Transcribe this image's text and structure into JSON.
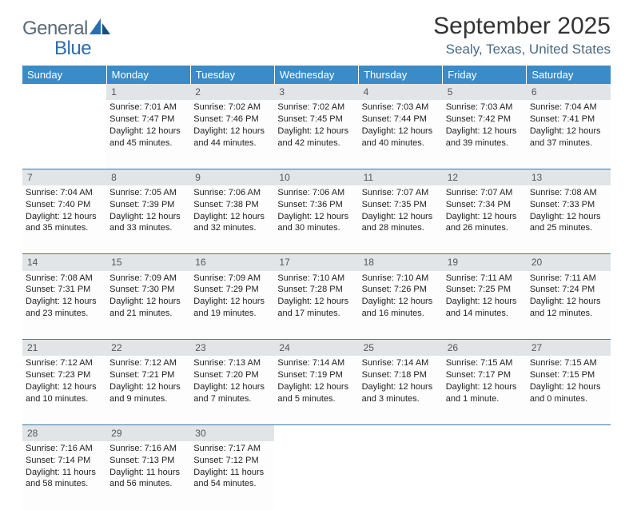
{
  "logo": {
    "word1": "General",
    "word2": "Blue"
  },
  "title": "September 2025",
  "location": "Sealy, Texas, United States",
  "header_bg": "#3a8cc9",
  "header_text_color": "#ffffff",
  "daynum_bg": "#e1e5e8",
  "border_color": "#3a7aa8",
  "page_bg": "#ffffff",
  "text_color": "#222222",
  "location_color": "#4a6a85",
  "title_fontsize": 30,
  "location_fontsize": 17,
  "cell_fontsize": 11,
  "day_headers": [
    "Sunday",
    "Monday",
    "Tuesday",
    "Wednesday",
    "Thursday",
    "Friday",
    "Saturday"
  ],
  "weeks": [
    [
      null,
      {
        "n": "1",
        "sunrise": "7:01 AM",
        "sunset": "7:47 PM",
        "daylight": "12 hours and 45 minutes."
      },
      {
        "n": "2",
        "sunrise": "7:02 AM",
        "sunset": "7:46 PM",
        "daylight": "12 hours and 44 minutes."
      },
      {
        "n": "3",
        "sunrise": "7:02 AM",
        "sunset": "7:45 PM",
        "daylight": "12 hours and 42 minutes."
      },
      {
        "n": "4",
        "sunrise": "7:03 AM",
        "sunset": "7:44 PM",
        "daylight": "12 hours and 40 minutes."
      },
      {
        "n": "5",
        "sunrise": "7:03 AM",
        "sunset": "7:42 PM",
        "daylight": "12 hours and 39 minutes."
      },
      {
        "n": "6",
        "sunrise": "7:04 AM",
        "sunset": "7:41 PM",
        "daylight": "12 hours and 37 minutes."
      }
    ],
    [
      {
        "n": "7",
        "sunrise": "7:04 AM",
        "sunset": "7:40 PM",
        "daylight": "12 hours and 35 minutes."
      },
      {
        "n": "8",
        "sunrise": "7:05 AM",
        "sunset": "7:39 PM",
        "daylight": "12 hours and 33 minutes."
      },
      {
        "n": "9",
        "sunrise": "7:06 AM",
        "sunset": "7:38 PM",
        "daylight": "12 hours and 32 minutes."
      },
      {
        "n": "10",
        "sunrise": "7:06 AM",
        "sunset": "7:36 PM",
        "daylight": "12 hours and 30 minutes."
      },
      {
        "n": "11",
        "sunrise": "7:07 AM",
        "sunset": "7:35 PM",
        "daylight": "12 hours and 28 minutes."
      },
      {
        "n": "12",
        "sunrise": "7:07 AM",
        "sunset": "7:34 PM",
        "daylight": "12 hours and 26 minutes."
      },
      {
        "n": "13",
        "sunrise": "7:08 AM",
        "sunset": "7:33 PM",
        "daylight": "12 hours and 25 minutes."
      }
    ],
    [
      {
        "n": "14",
        "sunrise": "7:08 AM",
        "sunset": "7:31 PM",
        "daylight": "12 hours and 23 minutes."
      },
      {
        "n": "15",
        "sunrise": "7:09 AM",
        "sunset": "7:30 PM",
        "daylight": "12 hours and 21 minutes."
      },
      {
        "n": "16",
        "sunrise": "7:09 AM",
        "sunset": "7:29 PM",
        "daylight": "12 hours and 19 minutes."
      },
      {
        "n": "17",
        "sunrise": "7:10 AM",
        "sunset": "7:28 PM",
        "daylight": "12 hours and 17 minutes."
      },
      {
        "n": "18",
        "sunrise": "7:10 AM",
        "sunset": "7:26 PM",
        "daylight": "12 hours and 16 minutes."
      },
      {
        "n": "19",
        "sunrise": "7:11 AM",
        "sunset": "7:25 PM",
        "daylight": "12 hours and 14 minutes."
      },
      {
        "n": "20",
        "sunrise": "7:11 AM",
        "sunset": "7:24 PM",
        "daylight": "12 hours and 12 minutes."
      }
    ],
    [
      {
        "n": "21",
        "sunrise": "7:12 AM",
        "sunset": "7:23 PM",
        "daylight": "12 hours and 10 minutes."
      },
      {
        "n": "22",
        "sunrise": "7:12 AM",
        "sunset": "7:21 PM",
        "daylight": "12 hours and 9 minutes."
      },
      {
        "n": "23",
        "sunrise": "7:13 AM",
        "sunset": "7:20 PM",
        "daylight": "12 hours and 7 minutes."
      },
      {
        "n": "24",
        "sunrise": "7:14 AM",
        "sunset": "7:19 PM",
        "daylight": "12 hours and 5 minutes."
      },
      {
        "n": "25",
        "sunrise": "7:14 AM",
        "sunset": "7:18 PM",
        "daylight": "12 hours and 3 minutes."
      },
      {
        "n": "26",
        "sunrise": "7:15 AM",
        "sunset": "7:17 PM",
        "daylight": "12 hours and 1 minute."
      },
      {
        "n": "27",
        "sunrise": "7:15 AM",
        "sunset": "7:15 PM",
        "daylight": "12 hours and 0 minutes."
      }
    ],
    [
      {
        "n": "28",
        "sunrise": "7:16 AM",
        "sunset": "7:14 PM",
        "daylight": "11 hours and 58 minutes."
      },
      {
        "n": "29",
        "sunrise": "7:16 AM",
        "sunset": "7:13 PM",
        "daylight": "11 hours and 56 minutes."
      },
      {
        "n": "30",
        "sunrise": "7:17 AM",
        "sunset": "7:12 PM",
        "daylight": "11 hours and 54 minutes."
      },
      null,
      null,
      null,
      null
    ]
  ],
  "labels": {
    "sunrise": "Sunrise:",
    "sunset": "Sunset:",
    "daylight": "Daylight:"
  }
}
